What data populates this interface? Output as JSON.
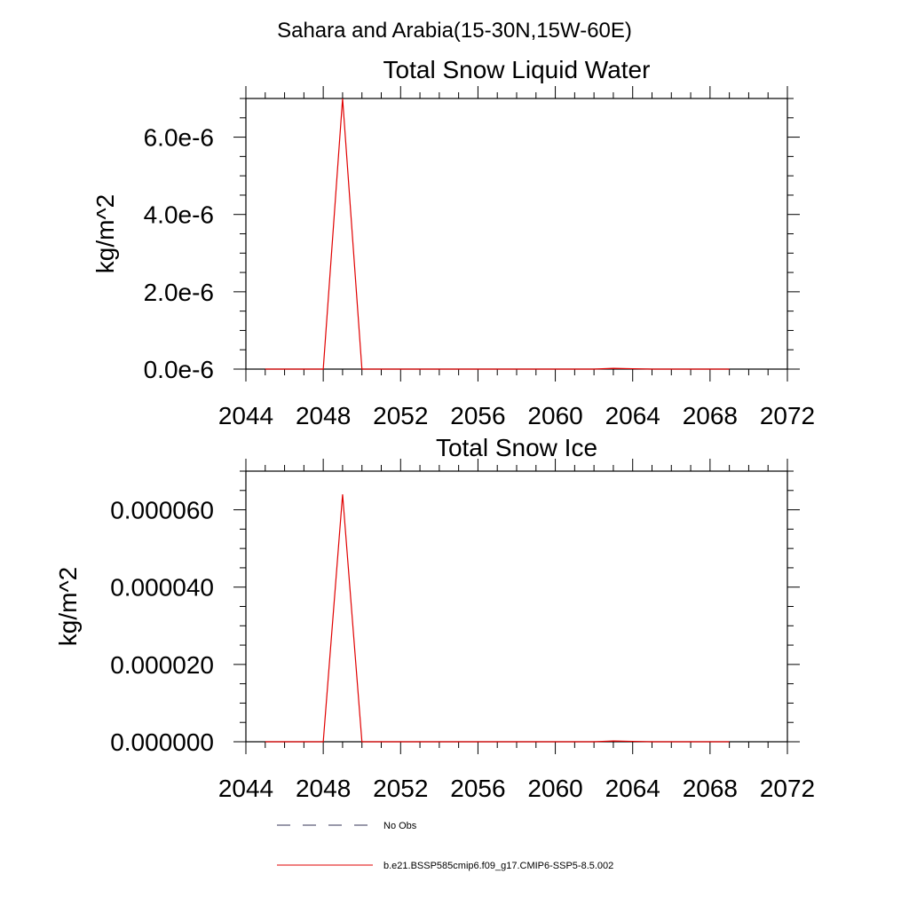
{
  "page": {
    "title": "Sahara and Arabia(15-30N,15W-60E)"
  },
  "chart_data": [
    {
      "type": "line",
      "title": "Total Snow Liquid Water",
      "ylabel": "kg/m^2",
      "xlim": [
        2044,
        2072
      ],
      "ylim": [
        0,
        7e-06
      ],
      "x_ticks": [
        2044,
        2048,
        2052,
        2056,
        2060,
        2064,
        2068,
        2072
      ],
      "x_tick_labels": [
        "2044",
        "2048",
        "2052",
        "2056",
        "2060",
        "2064",
        "2068",
        "2072"
      ],
      "y_ticks": [
        0,
        2e-06,
        4e-06,
        6e-06
      ],
      "y_tick_labels": [
        "0.0e-6",
        "2.0e-6",
        "4.0e-6",
        "6.0e-6"
      ],
      "series": [
        {
          "color": "#e00000",
          "x": [
            2045,
            2046,
            2047,
            2048,
            2049,
            2050,
            2051,
            2052,
            2053,
            2054,
            2055,
            2056,
            2057,
            2058,
            2059,
            2060,
            2061,
            2062,
            2063,
            2064,
            2065,
            2066,
            2067,
            2068,
            2069
          ],
          "y": [
            0,
            0,
            0,
            0,
            7e-06,
            0,
            0,
            0,
            0,
            0,
            0,
            0,
            0,
            0,
            0,
            0,
            0,
            0,
            2e-08,
            1e-08,
            0,
            0,
            0,
            0,
            0
          ]
        }
      ]
    },
    {
      "type": "line",
      "title": "Total Snow Ice",
      "ylabel": "kg/m^2",
      "xlim": [
        2044,
        2072
      ],
      "ylim": [
        0,
        7e-05
      ],
      "x_ticks": [
        2044,
        2048,
        2052,
        2056,
        2060,
        2064,
        2068,
        2072
      ],
      "x_tick_labels": [
        "2044",
        "2048",
        "2052",
        "2056",
        "2060",
        "2064",
        "2068",
        "2072"
      ],
      "y_ticks": [
        0,
        2e-05,
        4e-05,
        6e-05
      ],
      "y_tick_labels": [
        "0.000000",
        "0.000020",
        "0.000040",
        "0.000060"
      ],
      "series": [
        {
          "color": "#e00000",
          "x": [
            2045,
            2046,
            2047,
            2048,
            2049,
            2050,
            2051,
            2052,
            2053,
            2054,
            2055,
            2056,
            2057,
            2058,
            2059,
            2060,
            2061,
            2062,
            2063,
            2064,
            2065,
            2066,
            2067,
            2068,
            2069
          ],
          "y": [
            0,
            0,
            0,
            0,
            6.4e-05,
            0,
            0,
            0,
            0,
            0,
            0,
            0,
            0,
            0,
            0,
            0,
            0,
            0,
            2e-07,
            1e-07,
            0,
            0,
            0,
            0,
            0
          ]
        }
      ]
    }
  ],
  "legend": {
    "placement": "bottom",
    "items": [
      {
        "label": "No Obs",
        "style": "dashed",
        "color": "#333355"
      },
      {
        "label": "b.e21.BSSP585cmip6.f09_g17.CMIP6-SSP5-8.5.002",
        "style": "solid",
        "color": "#e00000"
      }
    ]
  }
}
